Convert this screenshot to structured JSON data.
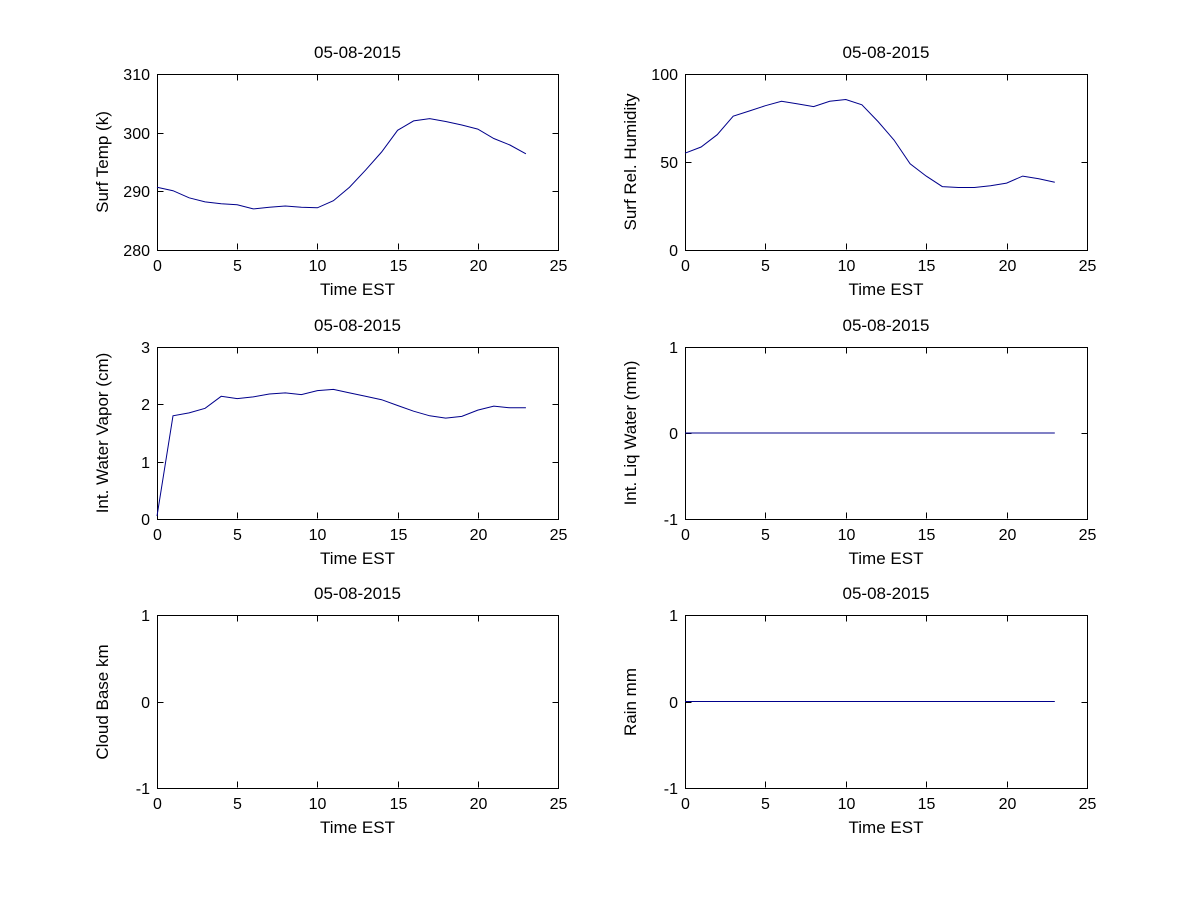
{
  "figure": {
    "background": "#ffffff",
    "line_color": "#00008B",
    "axis_color": "#000000",
    "text_color": "#000000"
  },
  "chart_data": [
    {
      "type": "line",
      "title": "05-08-2015",
      "xlabel": "Time EST",
      "ylabel": "Surf Temp (k)",
      "xlim": [
        0,
        25
      ],
      "ylim": [
        280,
        310
      ],
      "xticks": [
        0,
        5,
        10,
        15,
        20,
        25
      ],
      "yticks": [
        280,
        290,
        300,
        310
      ],
      "grid": false,
      "legend": null,
      "x": [
        0,
        1,
        2,
        3,
        4,
        5,
        6,
        7,
        8,
        9,
        10,
        11,
        12,
        13,
        14,
        15,
        16,
        17,
        18,
        19,
        20,
        21,
        22,
        23
      ],
      "y": [
        290.7,
        290.1,
        288.9,
        288.2,
        287.9,
        287.7,
        287.0,
        287.3,
        287.5,
        287.3,
        287.2,
        288.4,
        290.7,
        293.6,
        296.7,
        300.4,
        302.0,
        302.4,
        301.9,
        301.3,
        300.6,
        299.0,
        297.9,
        296.4
      ]
    },
    {
      "type": "line",
      "title": "05-08-2015",
      "xlabel": "Time EST",
      "ylabel": "Surf Rel. Humidity",
      "xlim": [
        0,
        25
      ],
      "ylim": [
        0,
        100
      ],
      "xticks": [
        0,
        5,
        10,
        15,
        20,
        25
      ],
      "yticks": [
        0,
        50,
        100
      ],
      "grid": false,
      "legend": null,
      "x": [
        0,
        1,
        2,
        3,
        4,
        5,
        6,
        7,
        8,
        9,
        10,
        11,
        12,
        13,
        14,
        15,
        16,
        17,
        18,
        19,
        20,
        21,
        22,
        23
      ],
      "y": [
        55,
        58.5,
        65.5,
        76,
        79,
        82,
        84.5,
        83,
        81.5,
        84.5,
        85.5,
        82.5,
        73,
        62.5,
        49,
        42,
        36,
        35.5,
        35.5,
        36.5,
        38,
        42,
        40.5,
        38.5
      ]
    },
    {
      "type": "line",
      "title": "05-08-2015",
      "xlabel": "Time EST",
      "ylabel": "Int. Water Vapor (cm)",
      "xlim": [
        0,
        25
      ],
      "ylim": [
        0,
        3
      ],
      "xticks": [
        0,
        5,
        10,
        15,
        20,
        25
      ],
      "yticks": [
        0,
        1,
        2,
        3
      ],
      "grid": false,
      "legend": null,
      "x": [
        0,
        1,
        2,
        3,
        4,
        5,
        6,
        7,
        8,
        9,
        10,
        11,
        12,
        13,
        14,
        15,
        16,
        17,
        18,
        19,
        20,
        21,
        22,
        23
      ],
      "y": [
        0.05,
        1.8,
        1.85,
        1.93,
        2.14,
        2.1,
        2.13,
        2.18,
        2.2,
        2.17,
        2.24,
        2.26,
        2.2,
        2.14,
        2.08,
        1.98,
        1.88,
        1.8,
        1.76,
        1.79,
        1.9,
        1.97,
        1.94,
        1.94
      ]
    },
    {
      "type": "line",
      "title": "05-08-2015",
      "xlabel": "Time EST",
      "ylabel": "Int. Liq Water (mm)",
      "xlim": [
        0,
        25
      ],
      "ylim": [
        -1,
        1
      ],
      "xticks": [
        0,
        5,
        10,
        15,
        20,
        25
      ],
      "yticks": [
        -1,
        0,
        1
      ],
      "grid": false,
      "legend": null,
      "x": [
        0,
        1,
        2,
        3,
        4,
        5,
        6,
        7,
        8,
        9,
        10,
        11,
        12,
        13,
        14,
        15,
        16,
        17,
        18,
        19,
        20,
        21,
        22,
        23
      ],
      "y": [
        0,
        0,
        0,
        0,
        0,
        0,
        0,
        0,
        0,
        0,
        0,
        0,
        0,
        0,
        0,
        0,
        0,
        0,
        0,
        0,
        0,
        0,
        0,
        0
      ]
    },
    {
      "type": "line",
      "title": "05-08-2015",
      "xlabel": "Time EST",
      "ylabel": "Cloud Base km",
      "xlim": [
        0,
        25
      ],
      "ylim": [
        -1,
        1
      ],
      "xticks": [
        0,
        5,
        10,
        15,
        20,
        25
      ],
      "yticks": [
        -1,
        0,
        1
      ],
      "grid": false,
      "legend": null,
      "x": [],
      "y": []
    },
    {
      "type": "line",
      "title": "05-08-2015",
      "xlabel": "Time EST",
      "ylabel": "Rain mm",
      "xlim": [
        0,
        25
      ],
      "ylim": [
        -1,
        1
      ],
      "xticks": [
        0,
        5,
        10,
        15,
        20,
        25
      ],
      "yticks": [
        -1,
        0,
        1
      ],
      "grid": false,
      "legend": null,
      "x": [
        0,
        1,
        2,
        3,
        4,
        5,
        6,
        7,
        8,
        9,
        10,
        11,
        12,
        13,
        14,
        15,
        16,
        17,
        18,
        19,
        20,
        21,
        22,
        23
      ],
      "y": [
        0,
        0,
        0,
        0,
        0,
        0,
        0,
        0,
        0,
        0,
        0,
        0,
        0,
        0,
        0,
        0,
        0,
        0,
        0,
        0,
        0,
        0,
        0,
        0
      ]
    }
  ]
}
